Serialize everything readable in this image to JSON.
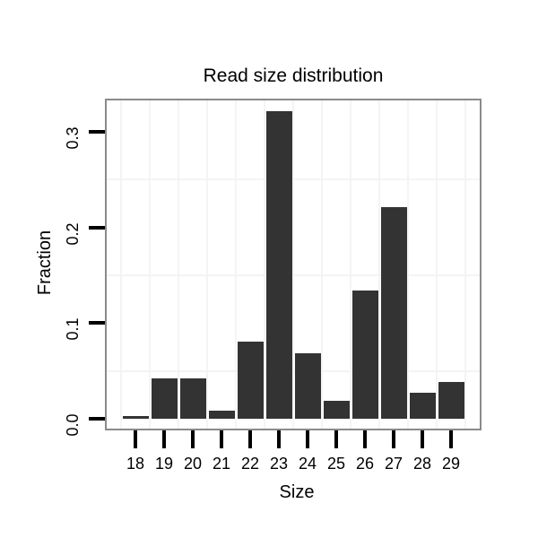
{
  "chart_data": {
    "type": "bar",
    "title": "Read size distribution",
    "xlabel": "Size",
    "ylabel": "Fraction",
    "categories": [
      "18",
      "19",
      "20",
      "21",
      "22",
      "23",
      "24",
      "25",
      "26",
      "27",
      "28",
      "29"
    ],
    "values": [
      0.003,
      0.042,
      0.042,
      0.008,
      0.081,
      0.322,
      0.068,
      0.019,
      0.134,
      0.221,
      0.027,
      0.038
    ],
    "ylim": [
      0,
      0.335
    ],
    "ytick_values": [
      0,
      0.1,
      0.2,
      0.3
    ],
    "ytick_labels": [
      "0.0",
      "0.1",
      "0.2",
      "0.3"
    ],
    "yminor_values": [
      0.05,
      0.15,
      0.25
    ],
    "grid": "minor-lines-only",
    "legend_position": "none",
    "colors": {
      "bar": "#333333",
      "grid": "#f4f4f4",
      "panel_border": "#8a8a8a",
      "tick": "#000000",
      "text": "#000000",
      "background": "#ffffff"
    }
  }
}
